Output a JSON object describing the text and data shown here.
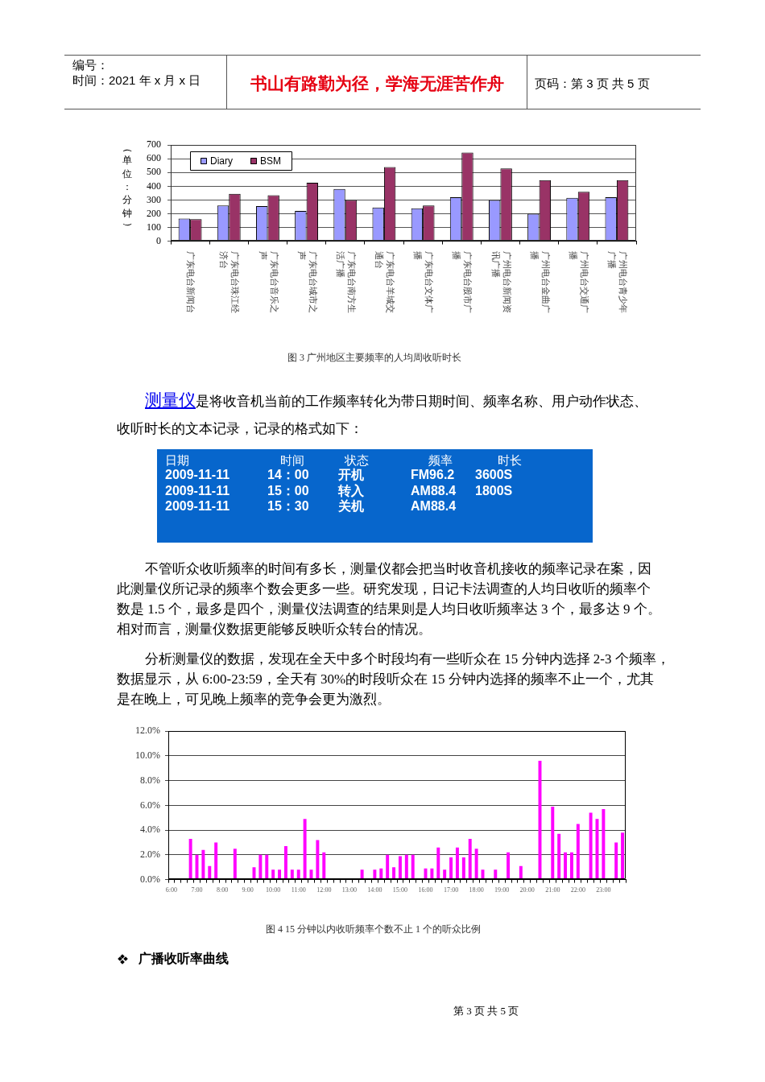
{
  "chart_data": [
    {
      "type": "other",
      "annotations": [
        "编号：",
        "时间：2021 年 x 月 x 日",
        "书山有路勤为径，学海无涯苦作舟",
        "页码：第 3 页 共 5 页"
      ]
    },
    {
      "type": "bar",
      "title": "图 3 广州地区主要频率的人均周收听时长",
      "ylabel": "（单位：分钟）",
      "categories": [
        "广东电台新闻台",
        "广东电台珠江经济台",
        "广东电台音乐之声",
        "广东电台城市之声",
        "广东电台南方生活广播",
        "广东电台羊城交通台",
        "广东电台文体广播",
        "广东电台股市广播",
        "广州电台新闻资讯广播",
        "广州电台金曲广播",
        "广州电台交通广播",
        "广州电台青少年广播"
      ],
      "series": [
        {
          "name": "Diary",
          "color": "#9999ff",
          "values": [
            165,
            260,
            255,
            220,
            380,
            245,
            240,
            320,
            300,
            200,
            315,
            320
          ]
        },
        {
          "name": "BSM",
          "color": "#993366",
          "values": [
            160,
            345,
            335,
            425,
            300,
            540,
            260,
            645,
            530,
            445,
            360,
            445
          ]
        }
      ],
      "ylim": [
        0,
        700
      ],
      "yticks": [
        0,
        100,
        200,
        300,
        400,
        500,
        600,
        700
      ],
      "grid": "y",
      "legend": "top left"
    },
    {
      "type": "other",
      "annotations": [
        "测量仪",
        "是将收音机当前的工作频率转化为带日期时间、频率名称、用户动作状态、",
        "收听时长的文本记录，记录的格式如下："
      ]
    },
    {
      "type": "other",
      "annotations": [
        "日期",
        "时间",
        "状态",
        "频率",
        "时长",
        "2009-11-11",
        "14：00",
        "开机",
        "FM96.2",
        "3600S",
        "2009-11-11",
        "15：00",
        "转入",
        "AM88.4",
        "1800S",
        "2009-11-11",
        "15：30",
        "关机",
        "AM88.4"
      ]
    },
    {
      "type": "other",
      "annotations": [
        "不管听众收听频率的时间有多长，测量仪都会把当时收音机接收的频率记录在案，因",
        "此测量仪所记录的频率个数会更多一些。研究发现，日记卡法调查的人均日收听的频率个",
        "数是 1.5 个，最多是四个，测量仪法调查的结果则是人均日收听频率达 3 个，最多达 9 个。",
        "相对而言，测量仪数据更能够反映听众转台的情况。"
      ]
    },
    {
      "type": "other",
      "annotations": [
        "分析测量仪的数据，发现在全天中多个时段均有一些听众在 15 分钟内选择 2-3 个频率，",
        "数据显示，从 6:00-23:59，全天有 30%的时段听众在 15 分钟内选择的频率不止一个，尤其",
        "是在晚上，可见晚上频率的竞争会更为激烈。"
      ]
    },
    {
      "type": "bar",
      "title": "图 4 15 分钟以内收听频率个数不止 1 个的听众比例",
      "categories": [
        "6:00",
        null,
        null,
        null,
        "7:00",
        null,
        null,
        null,
        "8:00",
        null,
        null,
        null,
        "9:00",
        null,
        null,
        null,
        "10:00",
        null,
        null,
        null,
        "11:00",
        null,
        null,
        null,
        "12:00",
        null,
        null,
        null,
        "13:00",
        null,
        null,
        null,
        "14:00",
        null,
        null,
        null,
        "15:00",
        null,
        null,
        null,
        "16:00",
        null,
        null,
        null,
        "17:00",
        null,
        null,
        null,
        "18:00",
        null,
        null,
        null,
        "19:00",
        null,
        null,
        null,
        "20:00",
        null,
        null,
        null,
        "21:00",
        null,
        null,
        null,
        "22:00",
        null,
        null,
        null,
        "23:00",
        null,
        null,
        null
      ],
      "values": [
        null,
        null,
        null,
        3.3,
        2.0,
        2.4,
        1.1,
        3.0,
        null,
        null,
        2.5,
        null,
        null,
        1.0,
        2.0,
        2.0,
        0.8,
        0.8,
        2.7,
        0.8,
        0.8,
        4.9,
        0.8,
        3.2,
        2.2,
        null,
        null,
        null,
        null,
        null,
        0.8,
        null,
        0.8,
        0.9,
        2.0,
        1.0,
        1.9,
        2.0,
        2.0,
        null,
        0.9,
        0.9,
        2.6,
        0.8,
        1.8,
        2.6,
        1.8,
        3.3,
        2.5,
        0.8,
        null,
        0.8,
        null,
        2.2,
        null,
        1.1,
        null,
        null,
        9.6,
        null,
        5.9,
        3.7,
        2.2,
        2.2,
        4.5,
        null,
        5.4,
        4.9,
        5.7,
        null,
        3.0,
        3.8
      ],
      "color": "#ff00ff",
      "ylim": [
        0,
        12
      ],
      "yticks": [
        {
          "value": 0,
          "label": "0.0%"
        },
        {
          "value": 2,
          "label": "2.0%"
        },
        {
          "value": 4,
          "label": "4.0%"
        },
        {
          "value": 6,
          "label": "6.0%"
        },
        {
          "value": 8,
          "label": "8.0%"
        },
        {
          "value": 10,
          "label": "10.0%"
        },
        {
          "value": 12,
          "label": "12.0%"
        }
      ],
      "grid": "y"
    },
    {
      "type": "other",
      "annotations": [
        "广播收听率曲线",
        "第 3 页 共 5 页"
      ]
    }
  ]
}
